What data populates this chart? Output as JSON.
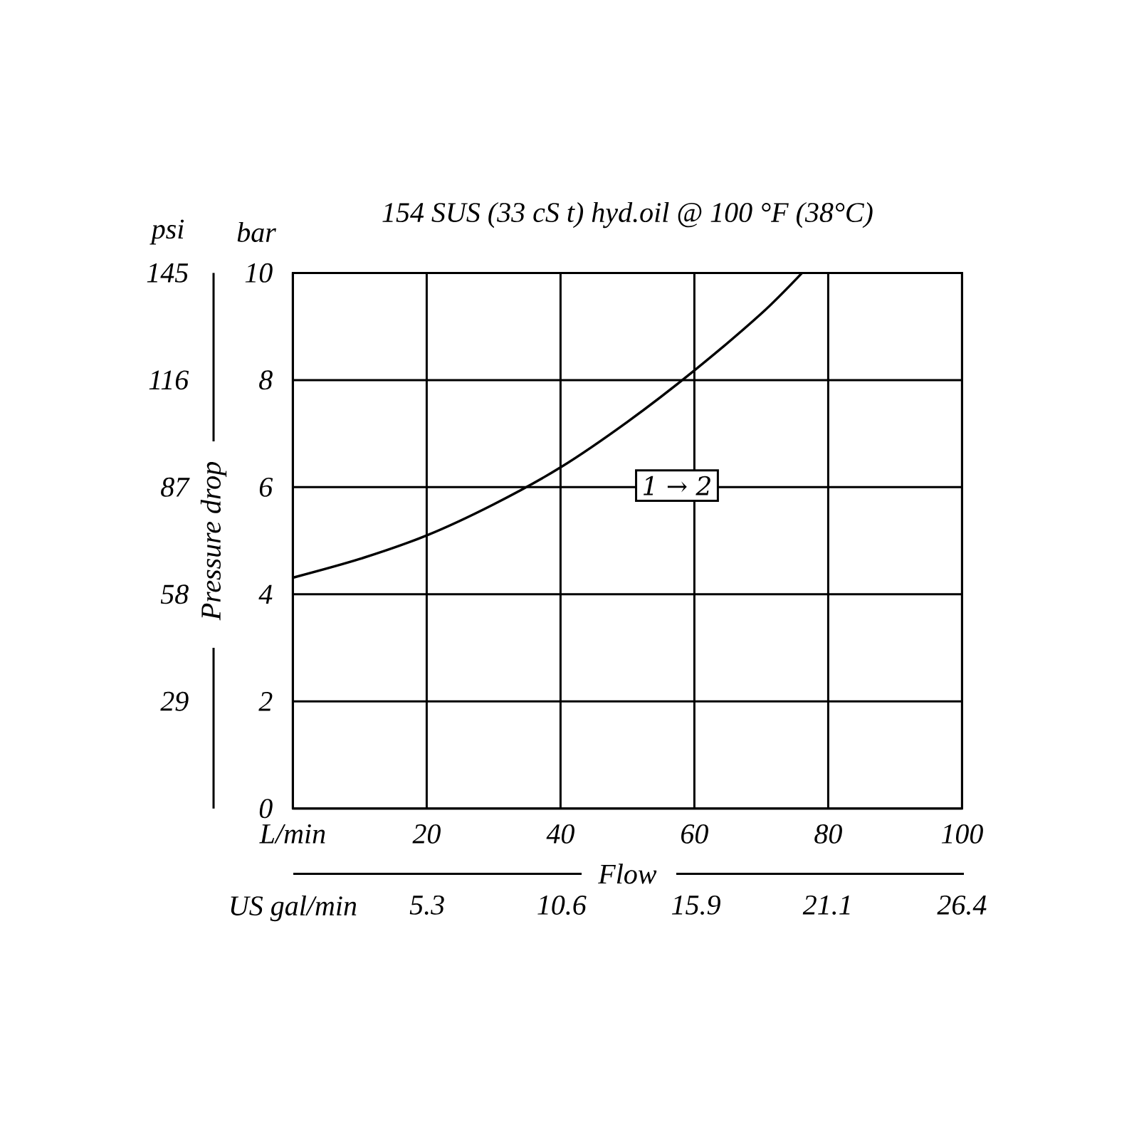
{
  "chart_data": {
    "type": "line",
    "title": "154 SUS (33 cS t) hyd.oil @ 100 °F (38°C)",
    "xlabel": "Flow",
    "y2label": "Pressure drop",
    "annotations": [
      "psi",
      "bar",
      "1 → 2"
    ],
    "x": [
      0,
      10,
      20,
      30,
      40,
      50,
      60,
      70,
      76.1
    ],
    "series": [
      {
        "color": "#000000",
        "values": [
          4.31,
          4.66,
          5.1,
          5.68,
          6.37,
          7.22,
          8.18,
          9.24,
          10
        ]
      }
    ],
    "xlim": [
      0,
      100
    ],
    "xticks": [
      {
        "value": 0,
        "label": "L/min"
      },
      20,
      40,
      60,
      80,
      100
    ],
    "x2lim": [
      0,
      26.4
    ],
    "x2ticks": [
      {
        "value": 0,
        "label": "US gal/min"
      },
      5.3,
      10.6,
      15.9,
      21.1,
      26.4
    ],
    "ylim": [
      0,
      10
    ],
    "yticks": [
      0,
      2,
      4,
      6,
      8,
      10
    ],
    "y2lim": [
      0,
      145
    ],
    "y2ticks": [
      29,
      58,
      87,
      116,
      145
    ],
    "grid": true,
    "marker": "none",
    "line_style": "solid"
  }
}
